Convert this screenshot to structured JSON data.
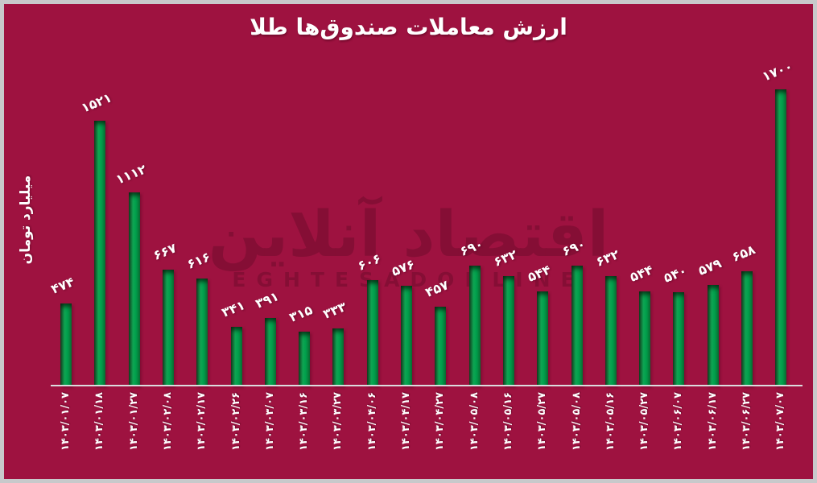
{
  "title": "ارزش معاملات صندوق‌ها طلا",
  "y_axis_label": "میلیارد تومان",
  "watermark": {
    "logo_fa": "اقتصاد آنلاین",
    "logo_latin": "EGHTESADONLINE"
  },
  "colors": {
    "background": "#9E1240",
    "frame": "#C8C9CB",
    "bar_green": "#00A04C",
    "bar_dark_green": "#143D1F",
    "text": "#FFFFFF",
    "axis_line": "#DCDCDE",
    "watermark": "#6E0C2B"
  },
  "chart_data": {
    "type": "bar",
    "title": "ارزش معاملات صندوق‌ها طلا",
    "xlabel": "",
    "ylabel": "میلیارد تومان",
    "ylim": [
      0,
      1700
    ],
    "grid": false,
    "legend": false,
    "categories": [
      "1403/01/07",
      "1403/01/18",
      "1403/01/27",
      "1403/02/08",
      "1403/02/17",
      "1403/02/26",
      "1403/03/07",
      "1403/03/16",
      "1403/03/27",
      "1403/04/06",
      "1403/04/17",
      "1403/04/27",
      "1403/05/08",
      "1403/05/16",
      "1403/05/27",
      "1403/05/08",
      "1403/05/16",
      "1403/05/27",
      "1403/06/07",
      "1403/06/17",
      "1403/06/27",
      "1403/07/07"
    ],
    "categories_fa": [
      "۱۴۰۳/۰۱/۰۷",
      "۱۴۰۳/۰۱/۱۸",
      "۱۴۰۳/۰۱/۲۷",
      "۱۴۰۳/۰۲/۰۸",
      "۱۴۰۳/۰۲/۱۷",
      "۱۴۰۳/۰۲/۲۶",
      "۱۴۰۳/۰۳/۰۷",
      "۱۴۰۳/۰۳/۱۶",
      "۱۴۰۳/۰۳/۲۷",
      "۱۴۰۳/۰۴/۰۶",
      "۱۴۰۳/۰۴/۱۷",
      "۱۴۰۳/۰۴/۲۷",
      "۱۴۰۳/۰۵/۰۸",
      "۱۴۰۳/۰۵/۱۶",
      "۱۴۰۳/۰۵/۲۷",
      "۱۴۰۳/۰۵/۰۸",
      "۱۴۰۳/۰۵/۱۶",
      "۱۴۰۳/۰۵/۲۷",
      "۱۴۰۳/۰۶/۰۷",
      "۱۴۰۳/۰۶/۱۷",
      "۱۴۰۳/۰۶/۲۷",
      "۱۴۰۳/۰۷/۰۷"
    ],
    "values": [
      474,
      1521,
      1112,
      667,
      616,
      341,
      391,
      315,
      333,
      606,
      576,
      457,
      690,
      632,
      544,
      690,
      632,
      544,
      540,
      579,
      658,
      1700
    ],
    "value_labels_fa": [
      "۴۷۴",
      "۱۵۲۱",
      "۱۱۱۲",
      "۶۶۷",
      "۶۱۶",
      "۳۴۱",
      "۳۹۱",
      "۳۱۵",
      "۳۳۳",
      "۶۰۶",
      "۵۷۶",
      "۴۵۷",
      "۶۹۰",
      "۶۳۲",
      "۵۴۴",
      "۶۹۰",
      "۶۳۲",
      "۵۴۴",
      "۵۴۰",
      "۵۷۹",
      "۶۵۸",
      "۱۷۰۰"
    ]
  }
}
